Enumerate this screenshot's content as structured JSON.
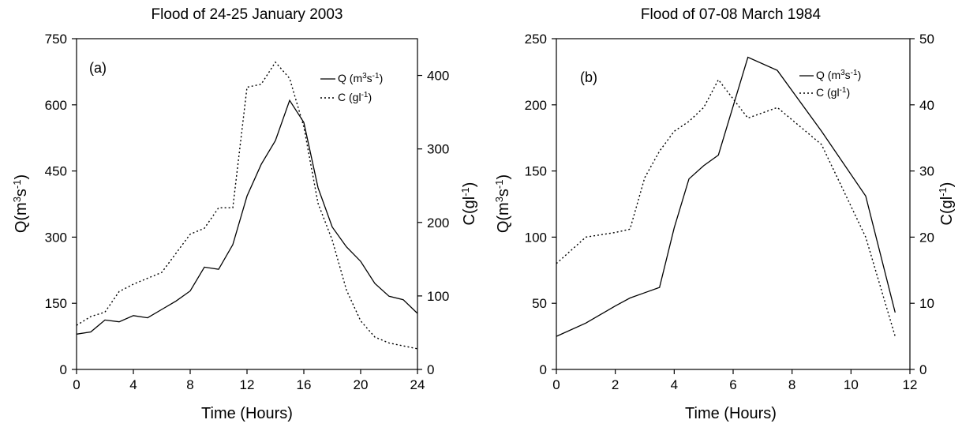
{
  "chart_data": [
    {
      "type": "line",
      "title": "Flood of 24-25 January 2003",
      "panel_label": "(a)",
      "xlabel": "Time (Hours)",
      "ylabel_left": "Q(m3s-1)",
      "ylabel_right": "C(gl-1)",
      "xlim": [
        0,
        24
      ],
      "xticks": [
        0,
        4,
        8,
        12,
        16,
        20,
        24
      ],
      "ylim_left": [
        0,
        750
      ],
      "yticks_left": [
        0,
        150,
        300,
        450,
        600,
        750
      ],
      "ylim_right": [
        0,
        450
      ],
      "yticks_right": [
        0,
        100,
        200,
        300,
        400
      ],
      "grid": false,
      "legend_position": "top-right",
      "series": [
        {
          "name": "Q (m3s-1)",
          "axis": "left",
          "style": "solid",
          "x": [
            0,
            1,
            2,
            3,
            4,
            5,
            6,
            7,
            8,
            9,
            10,
            11,
            12,
            13,
            14,
            15,
            16,
            17,
            18,
            19,
            20,
            21,
            22,
            23,
            24
          ],
          "y": [
            80,
            85,
            112,
            108,
            122,
            117,
            136,
            155,
            178,
            232,
            227,
            283,
            393,
            465,
            519,
            610,
            560,
            412,
            323,
            278,
            245,
            195,
            166,
            158,
            127
          ]
        },
        {
          "name": "C (gl-1)",
          "axis": "right",
          "style": "dotted",
          "x": [
            0,
            1,
            2,
            3,
            4,
            5,
            6,
            7,
            8,
            9,
            10,
            11,
            12,
            13,
            14,
            15,
            16,
            17,
            18,
            19,
            20,
            21,
            22,
            23,
            24
          ],
          "y": [
            60,
            72,
            78,
            106,
            116,
            124,
            132,
            158,
            184,
            192,
            220,
            220,
            384,
            388,
            418,
            396,
            330,
            226,
            176,
            108,
            66,
            44,
            36,
            32,
            28
          ]
        }
      ]
    },
    {
      "type": "line",
      "title": "Flood of 07-08 March 1984",
      "panel_label": "(b)",
      "xlabel": "Time (Hours)",
      "ylabel_left": "Q(m3s-1)",
      "ylabel_right": "C(gl-1)",
      "xlim": [
        0,
        12
      ],
      "xticks": [
        0,
        2,
        4,
        6,
        8,
        10,
        12
      ],
      "ylim_left": [
        0,
        250
      ],
      "yticks_left": [
        0,
        50,
        100,
        150,
        200,
        250
      ],
      "ylim_right": [
        0,
        50
      ],
      "yticks_right": [
        0,
        10,
        20,
        30,
        40,
        50
      ],
      "grid": false,
      "legend_position": "top-right",
      "series": [
        {
          "name": "Q (m3s-1)",
          "axis": "left",
          "style": "solid",
          "x": [
            0,
            1,
            2,
            2.5,
            3,
            3.5,
            4,
            4.5,
            5,
            5.5,
            6.5,
            7.5,
            9,
            10.5,
            11.5
          ],
          "y": [
            25,
            35,
            48,
            54,
            58,
            62,
            107,
            144,
            154,
            162,
            236,
            226,
            180,
            131,
            43
          ]
        },
        {
          "name": "C (gl-1)",
          "axis": "right",
          "style": "dotted",
          "x": [
            0,
            1,
            2,
            2.5,
            3,
            3.5,
            4,
            4.5,
            5,
            5.5,
            6.5,
            7.5,
            9,
            10.5,
            11.5
          ],
          "y": [
            16,
            20,
            20.7,
            21.2,
            29,
            33,
            36,
            37.5,
            39.6,
            43.8,
            38,
            39.6,
            34,
            20,
            5
          ]
        }
      ]
    }
  ]
}
